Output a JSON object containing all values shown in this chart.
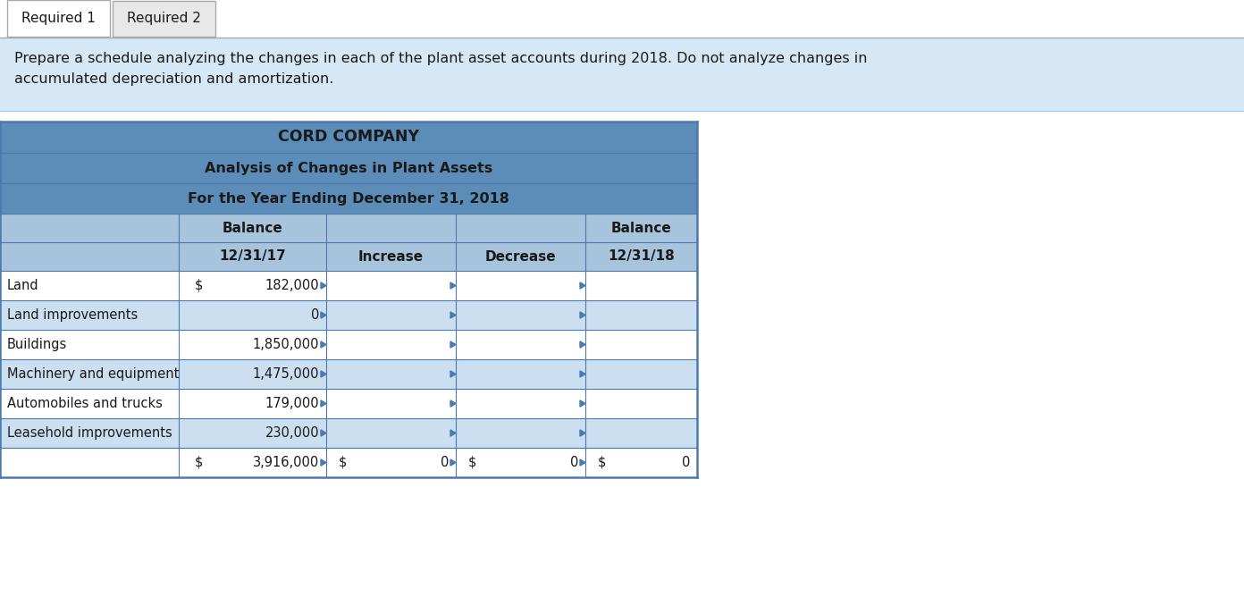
{
  "tab1_label": "Required 1",
  "tab2_label": "Required 2",
  "instruction_text": "Prepare a schedule analyzing the changes in each of the plant asset accounts during 2018. Do not analyze changes in\naccumulated depreciation and amortization.",
  "company_name": "CORD COMPANY",
  "subtitle1": "Analysis of Changes in Plant Assets",
  "subtitle2": "For the Year Ending December 31, 2018",
  "row_labels": [
    "Land",
    "Land improvements",
    "Buildings",
    "Machinery and equipment",
    "Automobiles and trucks",
    "Leasehold improvements"
  ],
  "balance17": [
    "182,000",
    "0",
    "1,850,000",
    "1,475,000",
    "179,000",
    "230,000"
  ],
  "balance17_dollar": [
    true,
    false,
    false,
    false,
    false,
    false
  ],
  "header_blue": "#5B8DB8",
  "header_light_blue": "#A8C4DC",
  "row_white": "#FFFFFF",
  "row_light_blue": "#CCDFF0",
  "tab_active_bg": "#FFFFFF",
  "tab_inactive_bg": "#E0E0E0",
  "tab_border": "#AAAAAA",
  "instruction_bg": "#D6E8F5",
  "border_color": "#4A7AAF",
  "text_color": "#1A1A1A",
  "total_border_color": "#4A7AAF"
}
